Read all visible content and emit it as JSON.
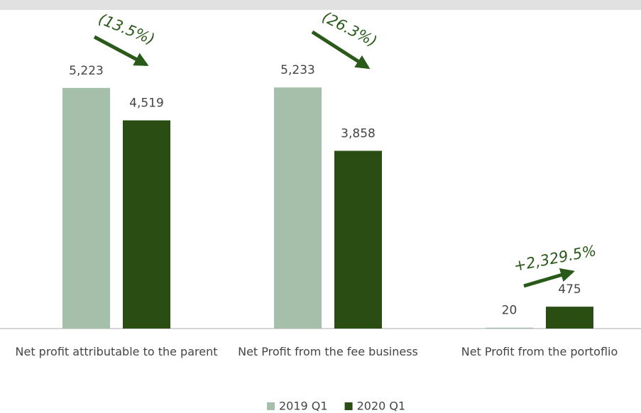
{
  "chart_data": {
    "type": "bar",
    "categories": [
      "Net profit attributable to the parent",
      "Net Profit from the fee business",
      "Net Profit from the portoflio"
    ],
    "series": [
      {
        "name": "2019 Q1",
        "color": "#a5bfaa",
        "values": [
          5223,
          5233,
          20
        ],
        "value_labels": [
          "5,223",
          "5,233",
          "20"
        ]
      },
      {
        "name": "2020 Q1",
        "color": "#2a4d14",
        "values": [
          4519,
          3858,
          475
        ],
        "value_labels": [
          "4,519",
          "3,858",
          "475"
        ]
      }
    ],
    "annotations": [
      "(13.5%)",
      "(26.3%)",
      "+2,329.5%"
    ],
    "annotation_color": "#2a5a1a",
    "ylim": [
      0,
      6900
    ],
    "legend": "bottom"
  }
}
